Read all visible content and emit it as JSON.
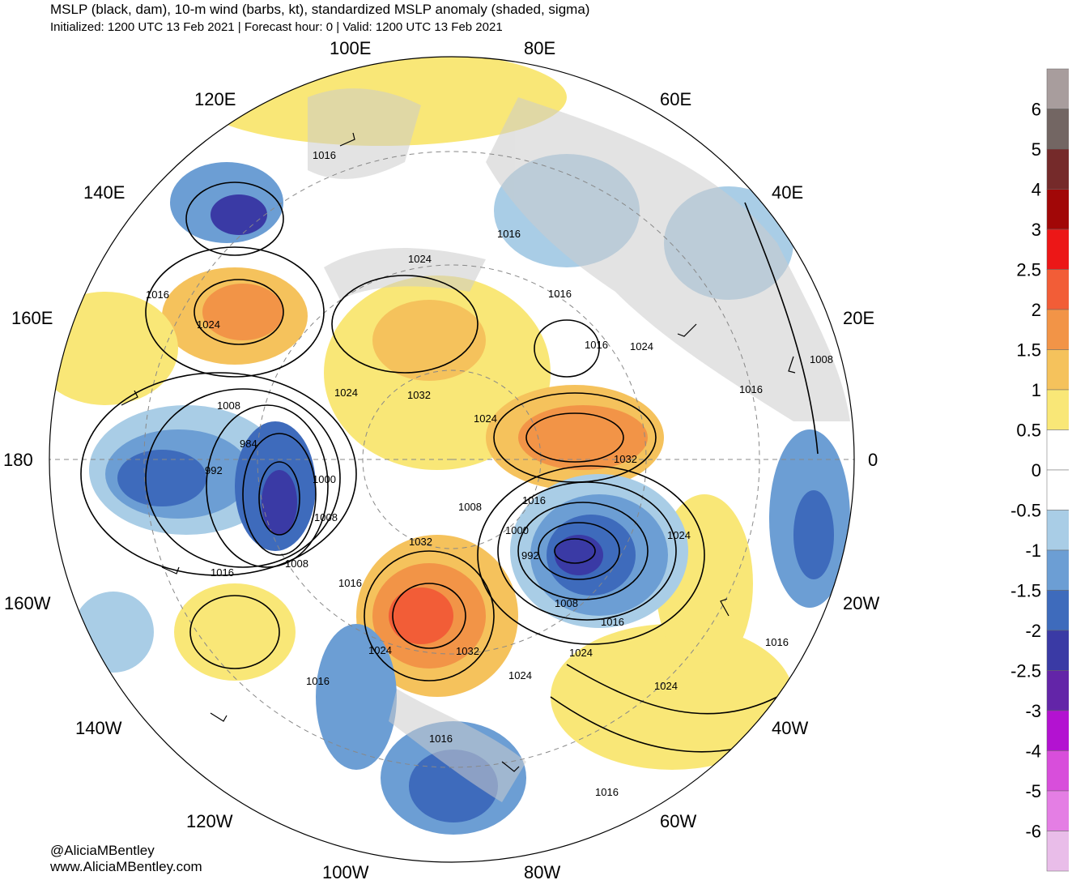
{
  "header": {
    "title": "MSLP (black, dam), 10-m wind (barbs, kt), standardized MSLP anomaly (shaded, sigma)",
    "subtitle": "Initialized: 1200 UTC 13 Feb 2021 | Forecast hour: 0 | Valid: 1200 UTC 13 Feb 2021"
  },
  "credits": {
    "twitter": "@AliciaMBentley",
    "website": "www.AliciaMBentley.com"
  },
  "map": {
    "projection": "north-polar-stereographic",
    "longitude_labels": [
      "100E",
      "80E",
      "120E",
      "60E",
      "140E",
      "40E",
      "160E",
      "20E",
      "180",
      "0",
      "160W",
      "20W",
      "140W",
      "40W",
      "120W",
      "60W",
      "100W",
      "80W"
    ],
    "isobar_labels": [
      "1016",
      "1024",
      "1016",
      "1024",
      "1016",
      "1016",
      "1016",
      "1024",
      "1008",
      "1024",
      "1032",
      "1024",
      "1016",
      "1008",
      "984",
      "992",
      "1000",
      "1008",
      "1032",
      "1016",
      "1008",
      "1000",
      "992",
      "1024",
      "1008",
      "1016",
      "1016",
      "1032",
      "1016",
      "1024",
      "1032",
      "1024",
      "1024",
      "1008",
      "1016",
      "1016",
      "1024",
      "1016",
      "1016"
    ],
    "land_color": "#cccccc"
  },
  "colorbar": {
    "ticks": [
      "6",
      "5",
      "4",
      "3",
      "2.5",
      "2",
      "1.5",
      "1",
      "0.5",
      "0",
      "-0.5",
      "-1",
      "-1.5",
      "-2",
      "-2.5",
      "-3",
      "-4",
      "-5",
      "-6"
    ],
    "colors": [
      "#a89d9d",
      "#736663",
      "#752a2a",
      "#a10707",
      "#ec1717",
      "#f25d37",
      "#f29447",
      "#f5c25c",
      "#f9e777",
      "#ffffff",
      "#ffffff",
      "#a9cde6",
      "#6c9ed4",
      "#3e6bbc",
      "#3a3aa5",
      "#6325a8",
      "#b312d1",
      "#d84edb",
      "#e47ee4",
      "#e9bde9"
    ]
  }
}
